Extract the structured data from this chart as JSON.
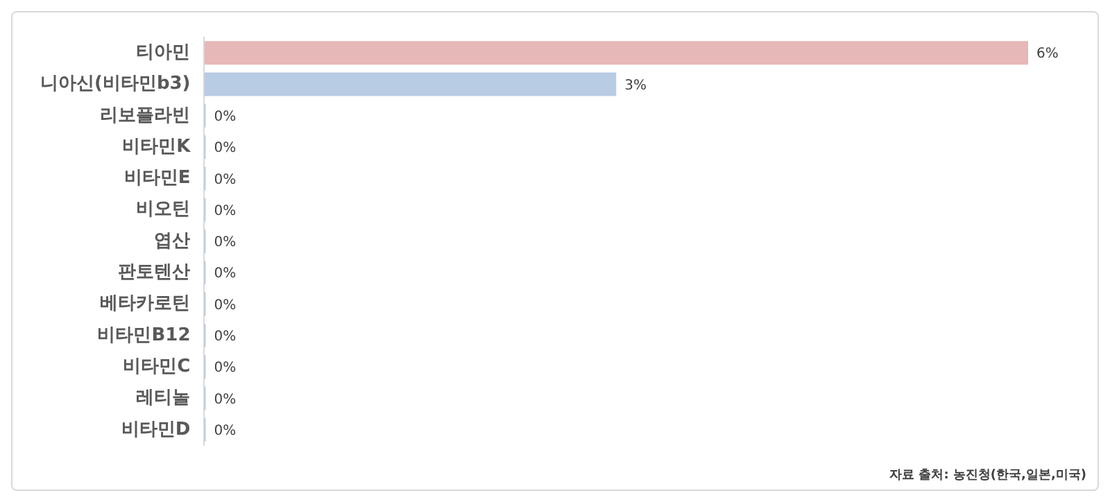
{
  "chart_data": {
    "type": "bar",
    "orientation": "horizontal",
    "categories": [
      "티아민",
      "니아신(비타민b3)",
      "리보플라빈",
      "비타민K",
      "비타민E",
      "비오틴",
      "엽산",
      "판토텐산",
      "베타카로틴",
      "비타민B12",
      "비타민C",
      "레티놀",
      "비타민D"
    ],
    "values": [
      6,
      3,
      0,
      0,
      0,
      0,
      0,
      0,
      0,
      0,
      0,
      0,
      0
    ],
    "colors": [
      "#e6b8b7",
      "#b8cce4",
      "#b8cce4",
      "#b8cce4",
      "#b8cce4",
      "#b8cce4",
      "#b8cce4",
      "#b8cce4",
      "#b8cce4",
      "#b8cce4",
      "#b8cce4",
      "#b8cce4",
      "#b8cce4"
    ],
    "value_labels": [
      "6%",
      "3%",
      "0%",
      "0%",
      "0%",
      "0%",
      "0%",
      "0%",
      "0%",
      "0%",
      "0%",
      "0%",
      "0%"
    ],
    "grid": false,
    "legend": false,
    "annotations": [
      "자료 출처: 농진청(한국,일본,미국)"
    ]
  }
}
